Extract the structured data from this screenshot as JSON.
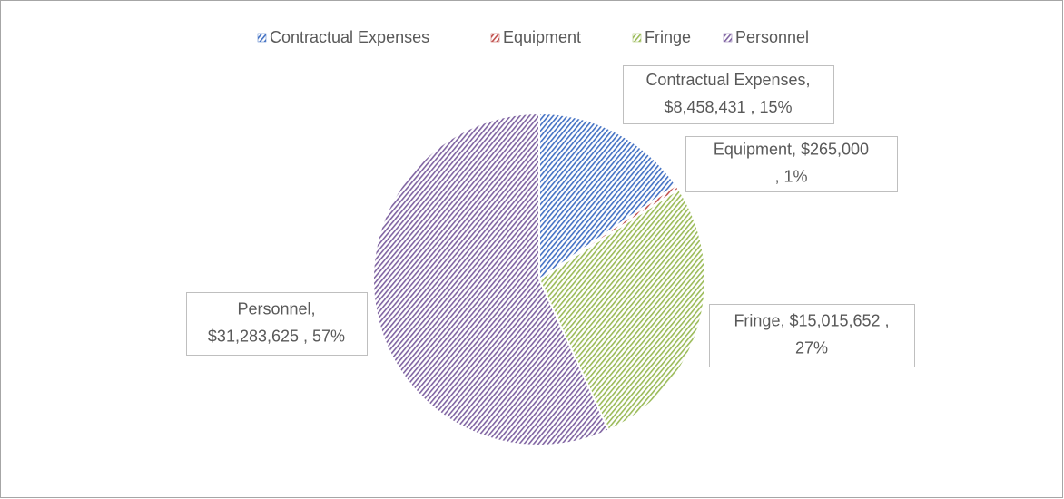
{
  "chart_data": {
    "type": "pie",
    "categories": [
      "Contractual Expenses",
      "Equipment",
      "Fringe",
      "Personnel"
    ],
    "values": [
      8458431,
      265000,
      15015652,
      31283625
    ],
    "value_labels": [
      [
        "Contractual Expenses,",
        "$8,458,431 , 15%"
      ],
      [
        "Equipment,  $265,000",
        ", 1%"
      ],
      [
        "Fringe,  $15,015,652 ,",
        "27%"
      ],
      [
        "Personnel,",
        "$31,283,625 , 57%"
      ]
    ],
    "colors": [
      "#4472c4",
      "#c0504d",
      "#9bbb59",
      "#8064a2"
    ],
    "legend": "top"
  }
}
